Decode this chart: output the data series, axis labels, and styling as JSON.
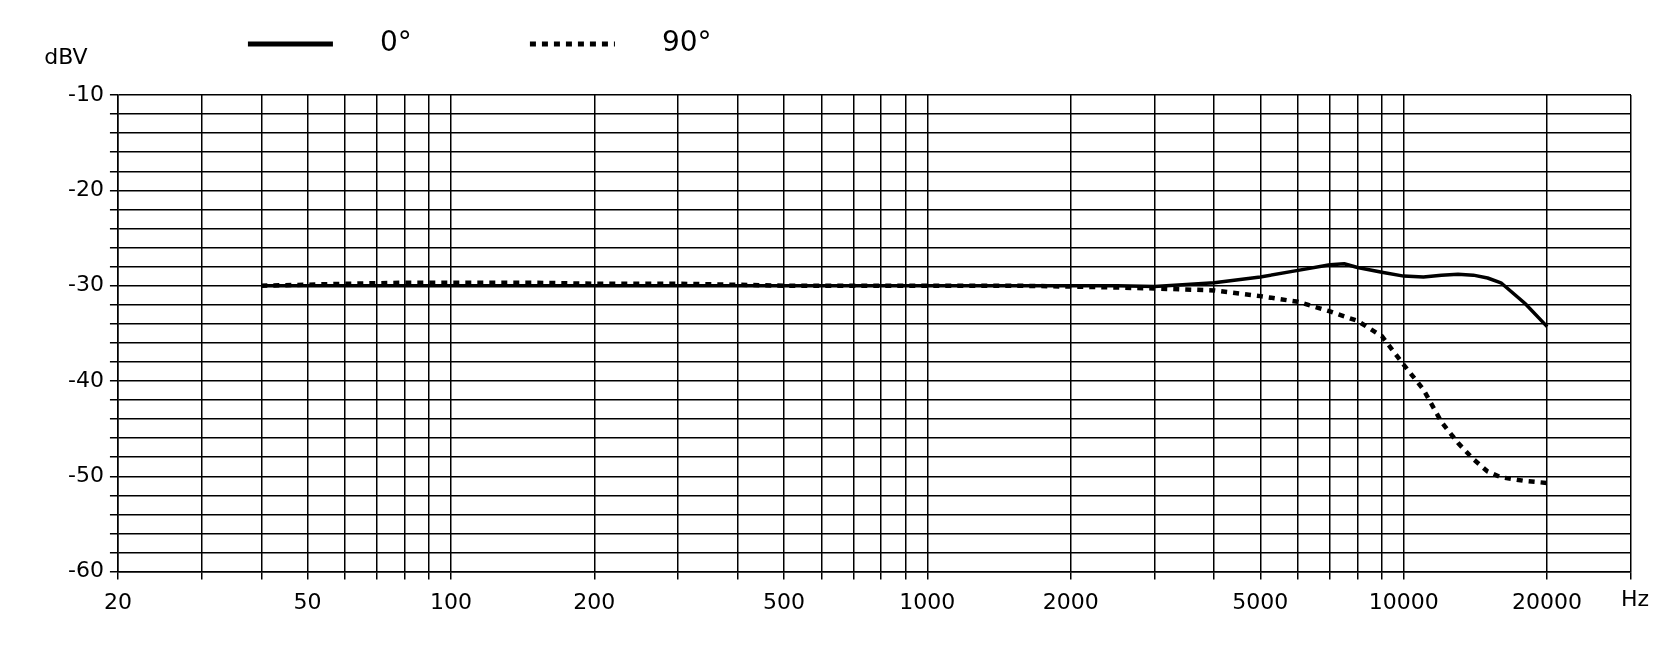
{
  "chart_data": {
    "type": "line",
    "xlabel": "Hz",
    "ylabel": "dBV",
    "log": "x",
    "grid": true,
    "legend": "top left",
    "xlim": [
      20,
      30000
    ],
    "ylim": [
      -60,
      -10
    ],
    "xticks": [
      20,
      {
        "value": 30,
        "label": null
      },
      {
        "value": 40,
        "label": null
      },
      50,
      {
        "value": 60,
        "label": null
      },
      {
        "value": 70,
        "label": null
      },
      {
        "value": 80,
        "label": null
      },
      {
        "value": 90,
        "label": null
      },
      100,
      200,
      {
        "value": 300,
        "label": null
      },
      {
        "value": 400,
        "label": null
      },
      500,
      {
        "value": 600,
        "label": null
      },
      {
        "value": 700,
        "label": null
      },
      {
        "value": 800,
        "label": null
      },
      {
        "value": 900,
        "label": null
      },
      1000,
      2000,
      {
        "value": 3000,
        "label": null
      },
      {
        "value": 4000,
        "label": null
      },
      5000,
      {
        "value": 6000,
        "label": null
      },
      {
        "value": 7000,
        "label": null
      },
      {
        "value": 8000,
        "label": null
      },
      {
        "value": 9000,
        "label": null
      },
      10000,
      20000,
      {
        "value": 30000,
        "label": null
      }
    ],
    "yticks": [
      -60,
      {
        "value": -58,
        "label": null
      },
      {
        "value": -56,
        "label": null
      },
      {
        "value": -54,
        "label": null
      },
      {
        "value": -52,
        "label": null
      },
      -50,
      {
        "value": -48,
        "label": null
      },
      {
        "value": -46,
        "label": null
      },
      {
        "value": -44,
        "label": null
      },
      {
        "value": -42,
        "label": null
      },
      -40,
      {
        "value": -38,
        "label": null
      },
      {
        "value": -36,
        "label": null
      },
      {
        "value": -34,
        "label": null
      },
      {
        "value": -32,
        "label": null
      },
      -30,
      {
        "value": -28,
        "label": null
      },
      {
        "value": -26,
        "label": null
      },
      {
        "value": -24,
        "label": null
      },
      {
        "value": -22,
        "label": null
      },
      -20,
      {
        "value": -18,
        "label": null
      },
      {
        "value": -16,
        "label": null
      },
      {
        "value": -14,
        "label": null
      },
      {
        "value": -12,
        "label": null
      },
      -10
    ],
    "series": [
      {
        "name": "0°",
        "color": "#000000",
        "line_style": "solid",
        "x": [
          40,
          50,
          60,
          80,
          100,
          150,
          200,
          300,
          500,
          700,
          1000,
          1500,
          2000,
          2500,
          3000,
          4000,
          5000,
          6000,
          7000,
          7500,
          8000,
          9000,
          10000,
          11000,
          12000,
          13000,
          14000,
          15000,
          16000,
          18000,
          20000
        ],
        "values": [
          -30,
          -30,
          -30,
          -30,
          -30,
          -30,
          -30,
          -30,
          -30,
          -30,
          -30,
          -30,
          -30,
          -30,
          -30.1,
          -29.7,
          -29.1,
          -28.4,
          -27.8,
          -27.7,
          -28.1,
          -28.6,
          -29.0,
          -29.1,
          -28.9,
          -28.8,
          -28.9,
          -29.2,
          -29.7,
          -31.9,
          -34.3
        ]
      },
      {
        "name": "90°",
        "color": "#000000",
        "line_style": "dotted",
        "x": [
          40,
          50,
          60,
          80,
          100,
          150,
          200,
          300,
          500,
          1000,
          1500,
          2000,
          2500,
          3000,
          4000,
          5000,
          6000,
          7000,
          8000,
          9000,
          10000,
          11000,
          12000,
          13000,
          14000,
          15000,
          16000,
          18000,
          20000
        ],
        "values": [
          -30,
          -29.9,
          -29.8,
          -29.7,
          -29.7,
          -29.7,
          -29.8,
          -29.8,
          -30,
          -30,
          -30,
          -30.1,
          -30.2,
          -30.3,
          -30.5,
          -31.1,
          -31.7,
          -32.7,
          -33.7,
          -35.3,
          -38.3,
          -40.9,
          -44.3,
          -46.5,
          -48.2,
          -49.5,
          -50.1,
          -50.5,
          -50.7
        ]
      }
    ]
  }
}
